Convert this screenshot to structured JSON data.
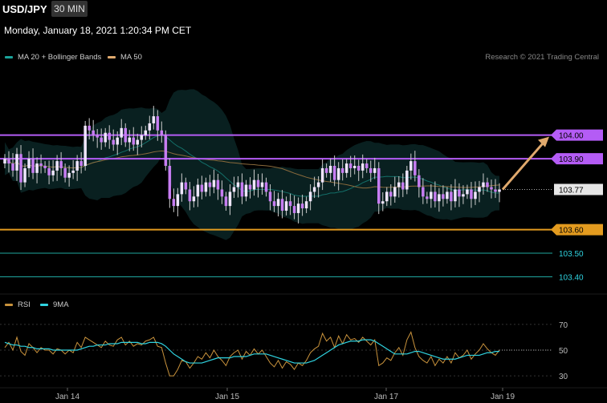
{
  "header": {
    "pair": "USD/JPY",
    "timeframe": "30 MIN",
    "datetime": "Monday, January 18, 2021 1:20:34 PM CET"
  },
  "legend_main": [
    {
      "label": "MA 20 + Bollinger Bands",
      "color": "#1aa39a"
    },
    {
      "label": "MA 50",
      "color": "#e0a96d"
    }
  ],
  "credit": "Research © 2021 Trading Central",
  "legend_rsi": [
    {
      "label": "RSI",
      "color": "#c8923c"
    },
    {
      "label": "9MA",
      "color": "#2fd3e0"
    }
  ],
  "chart_data": {
    "type": "candlestick",
    "x_ticks": [
      "Jan 14",
      "Jan 15",
      "Jan 17",
      "Jan 19"
    ],
    "price_levels": [
      {
        "label": "104.00",
        "value": 104.0,
        "color": "#b45cf5",
        "style": "resistance"
      },
      {
        "label": "103.90",
        "value": 103.9,
        "color": "#b45cf5",
        "style": "resistance"
      },
      {
        "label": "103.77",
        "value": 103.77,
        "color": "#dddddd",
        "style": "current"
      },
      {
        "label": "103.60",
        "value": 103.6,
        "color": "#e39b1f",
        "style": "pivot"
      },
      {
        "label": "103.50",
        "value": 103.5,
        "color": "#1fa7a0",
        "style": "support"
      },
      {
        "label": "103.40",
        "value": 103.4,
        "color": "#1fa7a0",
        "style": "support"
      }
    ],
    "price_ylim": [
      103.3,
      104.25
    ],
    "rsi_ticks": [
      70,
      50,
      30
    ],
    "rsi_ylim": [
      22,
      78
    ],
    "forecast": {
      "from": 103.77,
      "to": 104.0
    },
    "closes": [
      103.9,
      103.88,
      103.85,
      103.92,
      103.8,
      103.86,
      103.9,
      103.84,
      103.88,
      103.87,
      103.86,
      103.83,
      103.85,
      103.89,
      103.86,
      103.82,
      103.84,
      103.85,
      103.89,
      103.87,
      104.04,
      104.02,
      104.0,
      103.99,
      103.97,
      104.01,
      103.98,
      103.96,
      103.99,
      104.03,
      103.97,
      103.99,
      103.96,
      103.98,
      104.0,
      104.02,
      104.05,
      104.08,
      104.02,
      104.0,
      103.87,
      103.73,
      103.7,
      103.75,
      103.8,
      103.77,
      103.72,
      103.74,
      103.79,
      103.76,
      103.8,
      103.78,
      103.81,
      103.77,
      103.74,
      103.7,
      103.76,
      103.78,
      103.8,
      103.74,
      103.79,
      103.77,
      103.81,
      103.78,
      103.8,
      103.76,
      103.72,
      103.7,
      103.73,
      103.68,
      103.72,
      103.7,
      103.67,
      103.71,
      103.69,
      103.72,
      103.76,
      103.78,
      103.8,
      103.86,
      103.84,
      103.87,
      103.81,
      103.86,
      103.84,
      103.88,
      103.86,
      103.87,
      103.85,
      103.88,
      103.86,
      103.84,
      103.86,
      103.71,
      103.72,
      103.76,
      103.74,
      103.78,
      103.8,
      103.77,
      103.85,
      103.89,
      103.83,
      103.78,
      103.74,
      103.73,
      103.76,
      103.72,
      103.75,
      103.73,
      103.76,
      103.72,
      103.77,
      103.74,
      103.75,
      103.77,
      103.73,
      103.76,
      103.78,
      103.8,
      103.78,
      103.77,
      103.76,
      103.77
    ],
    "rsi": [
      52,
      56,
      50,
      60,
      49,
      46,
      55,
      52,
      48,
      52,
      50,
      50,
      47,
      51,
      50,
      47,
      50,
      48,
      56,
      52,
      60,
      58,
      56,
      54,
      52,
      57,
      54,
      53,
      58,
      60,
      54,
      57,
      53,
      55,
      54,
      57,
      58,
      60,
      53,
      52,
      40,
      30,
      30,
      35,
      42,
      41,
      36,
      40,
      45,
      43,
      48,
      44,
      50,
      45,
      42,
      38,
      45,
      48,
      50,
      43,
      49,
      46,
      51,
      47,
      50,
      45,
      40,
      37,
      42,
      36,
      41,
      39,
      35,
      40,
      38,
      42,
      48,
      51,
      53,
      63,
      57,
      60,
      52,
      61,
      55,
      62,
      58,
      59,
      56,
      60,
      57,
      54,
      58,
      38,
      40,
      44,
      42,
      48,
      52,
      46,
      58,
      64,
      52,
      45,
      42,
      40,
      45,
      38,
      43,
      40,
      45,
      40,
      48,
      44,
      46,
      50,
      43,
      47,
      50,
      55,
      51,
      48,
      46,
      50
    ],
    "rsi_ma": [
      56,
      55,
      54,
      54,
      53,
      53,
      52,
      52,
      51,
      51,
      51,
      51,
      50,
      50,
      50,
      50,
      50,
      50,
      50,
      51,
      52,
      53,
      53,
      54,
      54,
      54,
      55,
      55,
      55,
      56,
      56,
      56,
      56,
      56,
      55,
      55,
      56,
      56,
      56,
      55,
      53,
      50,
      47,
      45,
      43,
      41,
      40,
      40,
      40,
      40,
      41,
      42,
      43,
      44,
      44,
      44,
      44,
      45,
      45,
      45,
      45,
      46,
      47,
      47,
      47,
      47,
      46,
      45,
      44,
      43,
      42,
      41,
      40,
      40,
      40,
      40,
      41,
      42,
      44,
      46,
      48,
      50,
      52,
      54,
      55,
      56,
      57,
      57,
      57,
      58,
      58,
      58,
      57,
      55,
      53,
      51,
      49,
      47,
      47,
      47,
      47,
      48,
      49,
      49,
      48,
      47,
      46,
      45,
      44,
      43,
      43,
      43,
      43,
      44,
      45,
      46,
      46,
      46,
      46,
      47,
      48,
      48,
      49,
      49
    ]
  }
}
